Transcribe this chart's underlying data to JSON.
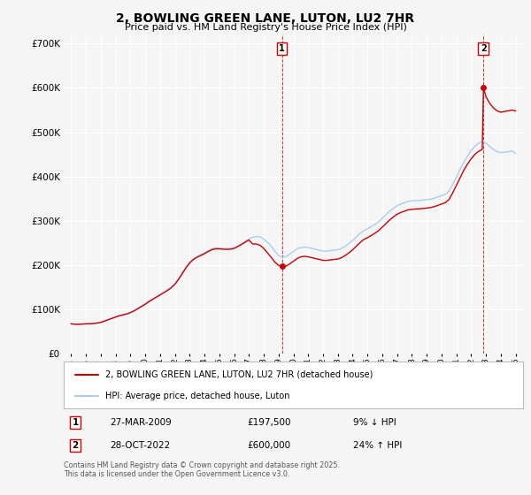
{
  "title": "2, BOWLING GREEN LANE, LUTON, LU2 7HR",
  "subtitle": "Price paid vs. HM Land Registry's House Price Index (HPI)",
  "legend_line1": "2, BOWLING GREEN LANE, LUTON, LU2 7HR (detached house)",
  "legend_line2": "HPI: Average price, detached house, Luton",
  "footer": "Contains HM Land Registry data © Crown copyright and database right 2025.\nThis data is licensed under the Open Government Licence v3.0.",
  "property_color": "#cc0000",
  "hpi_color": "#aaccee",
  "annotation1": {
    "label": "1",
    "date_str": "27-MAR-2009",
    "price": "£197,500",
    "pct": "9% ↓ HPI",
    "x_year": 2009.23,
    "y_val": 197500
  },
  "annotation2": {
    "label": "2",
    "date_str": "28-OCT-2022",
    "price": "£600,000",
    "pct": "24% ↑ HPI",
    "x_year": 2022.83,
    "y_val": 600000
  },
  "ylim": [
    0,
    720000
  ],
  "xlim": [
    1994.5,
    2025.5
  ],
  "yticks": [
    0,
    100000,
    200000,
    300000,
    400000,
    500000,
    600000,
    700000
  ],
  "ytick_labels": [
    "£0",
    "£100K",
    "£200K",
    "£300K",
    "£400K",
    "£500K",
    "£600K",
    "£700K"
  ],
  "xticks": [
    1995,
    1996,
    1997,
    1998,
    1999,
    2000,
    2001,
    2002,
    2003,
    2004,
    2005,
    2006,
    2007,
    2008,
    2009,
    2010,
    2011,
    2012,
    2013,
    2014,
    2015,
    2016,
    2017,
    2018,
    2019,
    2020,
    2021,
    2022,
    2023,
    2024,
    2025
  ],
  "background_color": "#f5f5f5",
  "plot_bg_color": "#f5f5f5",
  "grid_color": "#ffffff",
  "hpi_data": [
    [
      1995.0,
      68000
    ],
    [
      1995.25,
      67000
    ],
    [
      1995.5,
      66500
    ],
    [
      1995.75,
      67000
    ],
    [
      1996.0,
      68000
    ],
    [
      1996.25,
      68500
    ],
    [
      1996.5,
      69000
    ],
    [
      1996.75,
      70000
    ],
    [
      1997.0,
      72000
    ],
    [
      1997.25,
      75000
    ],
    [
      1997.5,
      78000
    ],
    [
      1997.75,
      81000
    ],
    [
      1998.0,
      84000
    ],
    [
      1998.25,
      87000
    ],
    [
      1998.5,
      89000
    ],
    [
      1998.75,
      91000
    ],
    [
      1999.0,
      94000
    ],
    [
      1999.25,
      98000
    ],
    [
      1999.5,
      103000
    ],
    [
      1999.75,
      108000
    ],
    [
      2000.0,
      113000
    ],
    [
      2000.25,
      119000
    ],
    [
      2000.5,
      124000
    ],
    [
      2000.75,
      129000
    ],
    [
      2001.0,
      134000
    ],
    [
      2001.25,
      139000
    ],
    [
      2001.5,
      145000
    ],
    [
      2001.75,
      150000
    ],
    [
      2002.0,
      158000
    ],
    [
      2002.25,
      170000
    ],
    [
      2002.5,
      183000
    ],
    [
      2002.75,
      196000
    ],
    [
      2003.0,
      207000
    ],
    [
      2003.25,
      215000
    ],
    [
      2003.5,
      220000
    ],
    [
      2003.75,
      224000
    ],
    [
      2004.0,
      228000
    ],
    [
      2004.25,
      233000
    ],
    [
      2004.5,
      237000
    ],
    [
      2004.75,
      239000
    ],
    [
      2005.0,
      239000
    ],
    [
      2005.25,
      238000
    ],
    [
      2005.5,
      238000
    ],
    [
      2005.75,
      238000
    ],
    [
      2006.0,
      240000
    ],
    [
      2006.25,
      244000
    ],
    [
      2006.5,
      249000
    ],
    [
      2006.75,
      254000
    ],
    [
      2007.0,
      259000
    ],
    [
      2007.25,
      263000
    ],
    [
      2007.5,
      265000
    ],
    [
      2007.75,
      264000
    ],
    [
      2008.0,
      259000
    ],
    [
      2008.25,
      252000
    ],
    [
      2008.5,
      243000
    ],
    [
      2008.75,
      232000
    ],
    [
      2009.0,
      222000
    ],
    [
      2009.25,
      218000
    ],
    [
      2009.5,
      220000
    ],
    [
      2009.75,
      225000
    ],
    [
      2010.0,
      231000
    ],
    [
      2010.25,
      237000
    ],
    [
      2010.5,
      240000
    ],
    [
      2010.75,
      241000
    ],
    [
      2011.0,
      240000
    ],
    [
      2011.25,
      238000
    ],
    [
      2011.5,
      236000
    ],
    [
      2011.75,
      234000
    ],
    [
      2012.0,
      232000
    ],
    [
      2012.25,
      232000
    ],
    [
      2012.5,
      233000
    ],
    [
      2012.75,
      234000
    ],
    [
      2013.0,
      235000
    ],
    [
      2013.25,
      238000
    ],
    [
      2013.5,
      243000
    ],
    [
      2013.75,
      249000
    ],
    [
      2014.0,
      256000
    ],
    [
      2014.25,
      264000
    ],
    [
      2014.5,
      272000
    ],
    [
      2014.75,
      278000
    ],
    [
      2015.0,
      282000
    ],
    [
      2015.25,
      287000
    ],
    [
      2015.5,
      292000
    ],
    [
      2015.75,
      298000
    ],
    [
      2016.0,
      306000
    ],
    [
      2016.25,
      314000
    ],
    [
      2016.5,
      322000
    ],
    [
      2016.75,
      328000
    ],
    [
      2017.0,
      334000
    ],
    [
      2017.25,
      338000
    ],
    [
      2017.5,
      341000
    ],
    [
      2017.75,
      344000
    ],
    [
      2018.0,
      345000
    ],
    [
      2018.25,
      346000
    ],
    [
      2018.5,
      346000
    ],
    [
      2018.75,
      347000
    ],
    [
      2019.0,
      348000
    ],
    [
      2019.25,
      349000
    ],
    [
      2019.5,
      351000
    ],
    [
      2019.75,
      354000
    ],
    [
      2020.0,
      357000
    ],
    [
      2020.25,
      360000
    ],
    [
      2020.5,
      367000
    ],
    [
      2020.75,
      382000
    ],
    [
      2021.0,
      399000
    ],
    [
      2021.25,
      416000
    ],
    [
      2021.5,
      432000
    ],
    [
      2021.75,
      446000
    ],
    [
      2022.0,
      458000
    ],
    [
      2022.25,
      468000
    ],
    [
      2022.5,
      475000
    ],
    [
      2022.75,
      479000
    ],
    [
      2023.0,
      475000
    ],
    [
      2023.25,
      468000
    ],
    [
      2023.5,
      461000
    ],
    [
      2023.75,
      456000
    ],
    [
      2024.0,
      454000
    ],
    [
      2024.25,
      455000
    ],
    [
      2024.5,
      456000
    ],
    [
      2024.75,
      458000
    ],
    [
      2025.0,
      452000
    ]
  ],
  "property_data": [
    [
      1995.0,
      68000
    ],
    [
      1995.25,
      67000
    ],
    [
      1995.5,
      67000
    ],
    [
      1995.75,
      67500
    ],
    [
      1996.0,
      68000
    ],
    [
      1996.25,
      68000
    ],
    [
      1996.5,
      68500
    ],
    [
      1996.75,
      69500
    ],
    [
      1997.0,
      71000
    ],
    [
      1997.25,
      74000
    ],
    [
      1997.5,
      77000
    ],
    [
      1997.75,
      80000
    ],
    [
      1998.0,
      83000
    ],
    [
      1998.25,
      86000
    ],
    [
      1998.5,
      88000
    ],
    [
      1998.75,
      90000
    ],
    [
      1999.0,
      93000
    ],
    [
      1999.25,
      97000
    ],
    [
      1999.5,
      102000
    ],
    [
      1999.75,
      107000
    ],
    [
      2000.0,
      112000
    ],
    [
      2000.25,
      118000
    ],
    [
      2000.5,
      123000
    ],
    [
      2000.75,
      128000
    ],
    [
      2001.0,
      133000
    ],
    [
      2001.25,
      138000
    ],
    [
      2001.5,
      143000
    ],
    [
      2001.75,
      149000
    ],
    [
      2002.0,
      157000
    ],
    [
      2002.25,
      168000
    ],
    [
      2002.5,
      181000
    ],
    [
      2002.75,
      194000
    ],
    [
      2003.0,
      205000
    ],
    [
      2003.25,
      213000
    ],
    [
      2003.5,
      218000
    ],
    [
      2003.75,
      222000
    ],
    [
      2004.0,
      226000
    ],
    [
      2004.25,
      231000
    ],
    [
      2004.5,
      235000
    ],
    [
      2004.75,
      237000
    ],
    [
      2005.0,
      237000
    ],
    [
      2005.25,
      236000
    ],
    [
      2005.5,
      236000
    ],
    [
      2005.75,
      236000
    ],
    [
      2006.0,
      238000
    ],
    [
      2006.25,
      242000
    ],
    [
      2006.5,
      247000
    ],
    [
      2006.75,
      252000
    ],
    [
      2007.0,
      257000
    ],
    [
      2007.25,
      248000
    ],
    [
      2007.5,
      248000
    ],
    [
      2007.75,
      245000
    ],
    [
      2008.0,
      238000
    ],
    [
      2008.25,
      228000
    ],
    [
      2008.5,
      218000
    ],
    [
      2008.75,
      207000
    ],
    [
      2009.0,
      200000
    ],
    [
      2009.23,
      197500
    ],
    [
      2009.5,
      198000
    ],
    [
      2009.75,
      203000
    ],
    [
      2010.0,
      209000
    ],
    [
      2010.25,
      215000
    ],
    [
      2010.5,
      219000
    ],
    [
      2010.75,
      220000
    ],
    [
      2011.0,
      219000
    ],
    [
      2011.25,
      217000
    ],
    [
      2011.5,
      215000
    ],
    [
      2011.75,
      213000
    ],
    [
      2012.0,
      211000
    ],
    [
      2012.25,
      211000
    ],
    [
      2012.5,
      212000
    ],
    [
      2012.75,
      213000
    ],
    [
      2013.0,
      214000
    ],
    [
      2013.25,
      217000
    ],
    [
      2013.5,
      222000
    ],
    [
      2013.75,
      228000
    ],
    [
      2014.0,
      235000
    ],
    [
      2014.25,
      243000
    ],
    [
      2014.5,
      251000
    ],
    [
      2014.75,
      258000
    ],
    [
      2015.0,
      262000
    ],
    [
      2015.25,
      267000
    ],
    [
      2015.5,
      272000
    ],
    [
      2015.75,
      278000
    ],
    [
      2016.0,
      286000
    ],
    [
      2016.25,
      294000
    ],
    [
      2016.5,
      302000
    ],
    [
      2016.75,
      309000
    ],
    [
      2017.0,
      315000
    ],
    [
      2017.25,
      319000
    ],
    [
      2017.5,
      322000
    ],
    [
      2017.75,
      325000
    ],
    [
      2018.0,
      326000
    ],
    [
      2018.25,
      327000
    ],
    [
      2018.5,
      327000
    ],
    [
      2018.75,
      328000
    ],
    [
      2019.0,
      329000
    ],
    [
      2019.25,
      330000
    ],
    [
      2019.5,
      332000
    ],
    [
      2019.75,
      335000
    ],
    [
      2020.0,
      338000
    ],
    [
      2020.25,
      341000
    ],
    [
      2020.5,
      348000
    ],
    [
      2020.75,
      363000
    ],
    [
      2021.0,
      380000
    ],
    [
      2021.25,
      397000
    ],
    [
      2021.5,
      414000
    ],
    [
      2021.75,
      428000
    ],
    [
      2022.0,
      440000
    ],
    [
      2022.25,
      450000
    ],
    [
      2022.5,
      457000
    ],
    [
      2022.75,
      461000
    ],
    [
      2022.83,
      600000
    ],
    [
      2023.0,
      580000
    ],
    [
      2023.25,
      565000
    ],
    [
      2023.5,
      555000
    ],
    [
      2023.75,
      548000
    ],
    [
      2024.0,
      545000
    ],
    [
      2024.25,
      547000
    ],
    [
      2024.5,
      548000
    ],
    [
      2024.75,
      550000
    ],
    [
      2025.0,
      548000
    ]
  ]
}
